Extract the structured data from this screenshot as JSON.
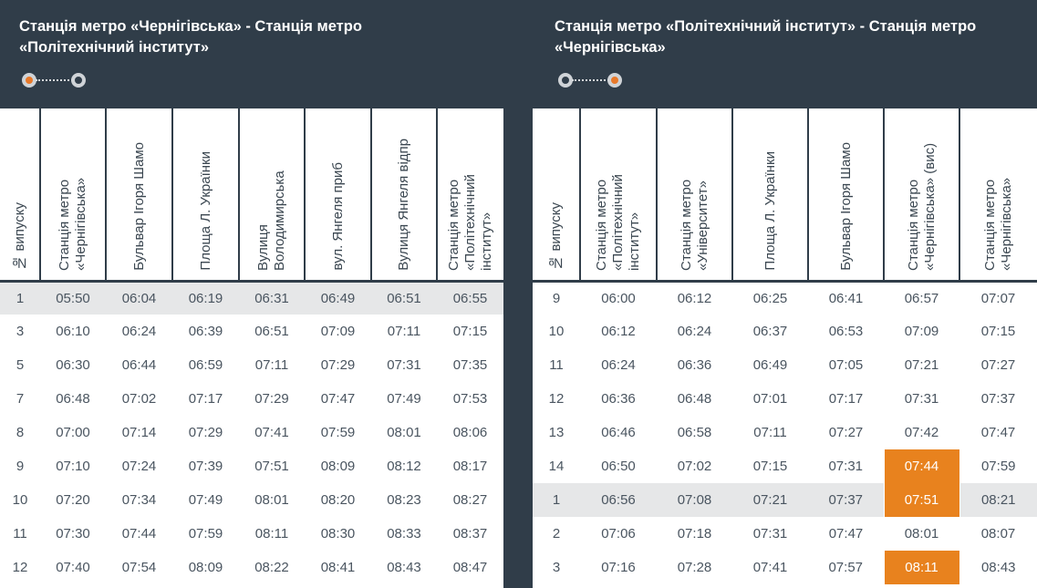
{
  "left": {
    "title_line1": "Станція метро «Чернігівська» - Станція метро",
    "title_line2": "«Політехнічний інститут»",
    "columns": [
      "№ випуску",
      "Станція метро «Чернігівська»",
      "Бульвар Ігоря Шамо",
      "Площа Л. Українки",
      "Вулиця Володимирська",
      "вул. Янгеля приб",
      "Вулиця Янгеля відпр",
      "Станція метро «Політехнічний інститут»"
    ],
    "rows": [
      {
        "cells": [
          "1",
          "05:50",
          "06:04",
          "06:19",
          "06:31",
          "06:49",
          "06:51",
          "06:55"
        ],
        "highlight": true
      },
      {
        "cells": [
          "3",
          "06:10",
          "06:24",
          "06:39",
          "06:51",
          "07:09",
          "07:11",
          "07:15"
        ]
      },
      {
        "cells": [
          "5",
          "06:30",
          "06:44",
          "06:59",
          "07:11",
          "07:29",
          "07:31",
          "07:35"
        ]
      },
      {
        "cells": [
          "7",
          "06:48",
          "07:02",
          "07:17",
          "07:29",
          "07:47",
          "07:49",
          "07:53"
        ]
      },
      {
        "cells": [
          "8",
          "07:00",
          "07:14",
          "07:29",
          "07:41",
          "07:59",
          "08:01",
          "08:06"
        ]
      },
      {
        "cells": [
          "9",
          "07:10",
          "07:24",
          "07:39",
          "07:51",
          "08:09",
          "08:12",
          "08:17"
        ]
      },
      {
        "cells": [
          "10",
          "07:20",
          "07:34",
          "07:49",
          "08:01",
          "08:20",
          "08:23",
          "08:27"
        ]
      },
      {
        "cells": [
          "11",
          "07:30",
          "07:44",
          "07:59",
          "08:11",
          "08:30",
          "08:33",
          "08:37"
        ]
      },
      {
        "cells": [
          "12",
          "07:40",
          "07:54",
          "08:09",
          "08:22",
          "08:41",
          "08:43",
          "08:47"
        ]
      }
    ]
  },
  "right": {
    "title_line1": "Станція метро «Політехнічний інститут» - Станція метро",
    "title_line2": "«Чернігівська»",
    "columns": [
      "№ випуску",
      "Станція метро «Політехнічний інститут»",
      "Станція метро «Університет»",
      "Площа Л. Українки",
      "Бульвар Ігоря Шамо",
      "Станція метро «Чернігівська» (вис)",
      "Станція метро «Чернігівська»"
    ],
    "rows": [
      {
        "cells": [
          "9",
          "06:00",
          "06:12",
          "06:25",
          "06:41",
          "06:57",
          "07:07"
        ]
      },
      {
        "cells": [
          "10",
          "06:12",
          "06:24",
          "06:37",
          "06:53",
          "07:09",
          "07:15"
        ]
      },
      {
        "cells": [
          "11",
          "06:24",
          "06:36",
          "06:49",
          "07:05",
          "07:21",
          "07:27"
        ]
      },
      {
        "cells": [
          "12",
          "06:36",
          "06:48",
          "07:01",
          "07:17",
          "07:31",
          "07:37"
        ]
      },
      {
        "cells": [
          "13",
          "06:46",
          "06:58",
          "07:11",
          "07:27",
          "07:42",
          "07:47"
        ]
      },
      {
        "cells": [
          "14",
          "06:50",
          "07:02",
          "07:15",
          "07:31",
          "07:44",
          "07:59"
        ],
        "orange": [
          5
        ]
      },
      {
        "cells": [
          "1",
          "06:56",
          "07:08",
          "07:21",
          "07:37",
          "07:51",
          "08:21"
        ],
        "highlight": true,
        "orange": [
          5
        ]
      },
      {
        "cells": [
          "2",
          "07:06",
          "07:18",
          "07:31",
          "07:47",
          "08:01",
          "08:07"
        ]
      },
      {
        "cells": [
          "3",
          "07:16",
          "07:28",
          "07:41",
          "07:57",
          "08:11",
          "08:43"
        ],
        "orange": [
          5
        ]
      }
    ]
  },
  "colors": {
    "dark": "#303d49",
    "accent": "#e8821e",
    "highlight_row": "#e6e7e8"
  }
}
